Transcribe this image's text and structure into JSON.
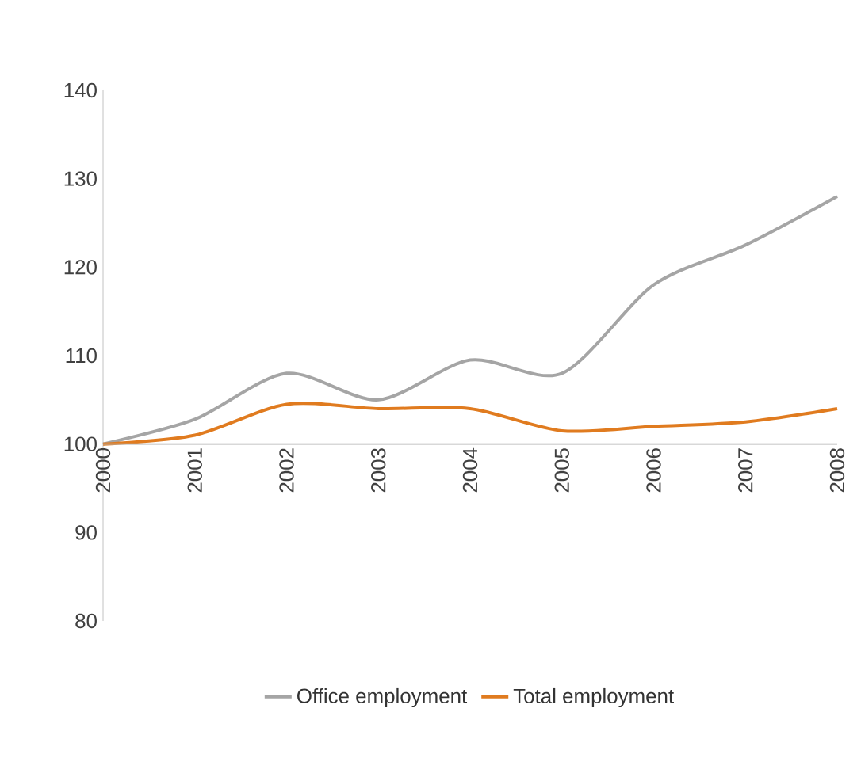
{
  "chart_data": {
    "type": "line",
    "categories": [
      "2000",
      "2001",
      "2002",
      "2003",
      "2004",
      "2005",
      "2006",
      "2007",
      "2008"
    ],
    "series": [
      {
        "name": "Office employment",
        "color": "#a5a5a5",
        "values": [
          100,
          102.8,
          108,
          105,
          109.5,
          108,
          118,
          122.5,
          128
        ]
      },
      {
        "name": "Total employment",
        "color": "#e07b1f",
        "values": [
          100,
          101,
          104.5,
          104,
          104,
          101.5,
          102,
          102.5,
          104
        ]
      }
    ],
    "ylim": [
      80,
      140
    ],
    "yticks": [
      80,
      90,
      100,
      110,
      120,
      130,
      140
    ],
    "grid": false,
    "legend": "bottom",
    "marker": "none",
    "line_style": "solid"
  }
}
